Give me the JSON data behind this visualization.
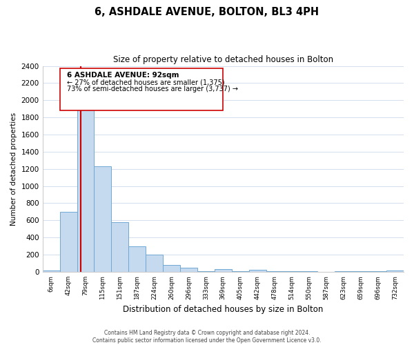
{
  "title": "6, ASHDALE AVENUE, BOLTON, BL3 4PH",
  "subtitle": "Size of property relative to detached houses in Bolton",
  "xlabel": "Distribution of detached houses by size in Bolton",
  "ylabel": "Number of detached properties",
  "bar_labels": [
    "6sqm",
    "42sqm",
    "79sqm",
    "115sqm",
    "151sqm",
    "187sqm",
    "224sqm",
    "260sqm",
    "296sqm",
    "333sqm",
    "369sqm",
    "405sqm",
    "442sqm",
    "478sqm",
    "514sqm",
    "550sqm",
    "587sqm",
    "623sqm",
    "659sqm",
    "696sqm",
    "732sqm"
  ],
  "bar_values": [
    15,
    700,
    1950,
    1230,
    575,
    300,
    200,
    80,
    45,
    5,
    35,
    5,
    20,
    5,
    5,
    5,
    0,
    5,
    5,
    5,
    15
  ],
  "bar_color": "#c5d9ef",
  "bar_edge_color": "#6fa8d4",
  "vline_x": 1.72,
  "vline_color": "#cc0000",
  "ylim": [
    0,
    2400
  ],
  "yticks": [
    0,
    200,
    400,
    600,
    800,
    1000,
    1200,
    1400,
    1600,
    1800,
    2000,
    2200,
    2400
  ],
  "annotation_title": "6 ASHDALE AVENUE: 92sqm",
  "annotation_line1": "← 27% of detached houses are smaller (1,375)",
  "annotation_line2": "73% of semi-detached houses are larger (3,737) →",
  "footer_line1": "Contains HM Land Registry data © Crown copyright and database right 2024.",
  "footer_line2": "Contains public sector information licensed under the Open Government Licence v3.0.",
  "background_color": "#ffffff",
  "grid_color": "#cdd8ea"
}
